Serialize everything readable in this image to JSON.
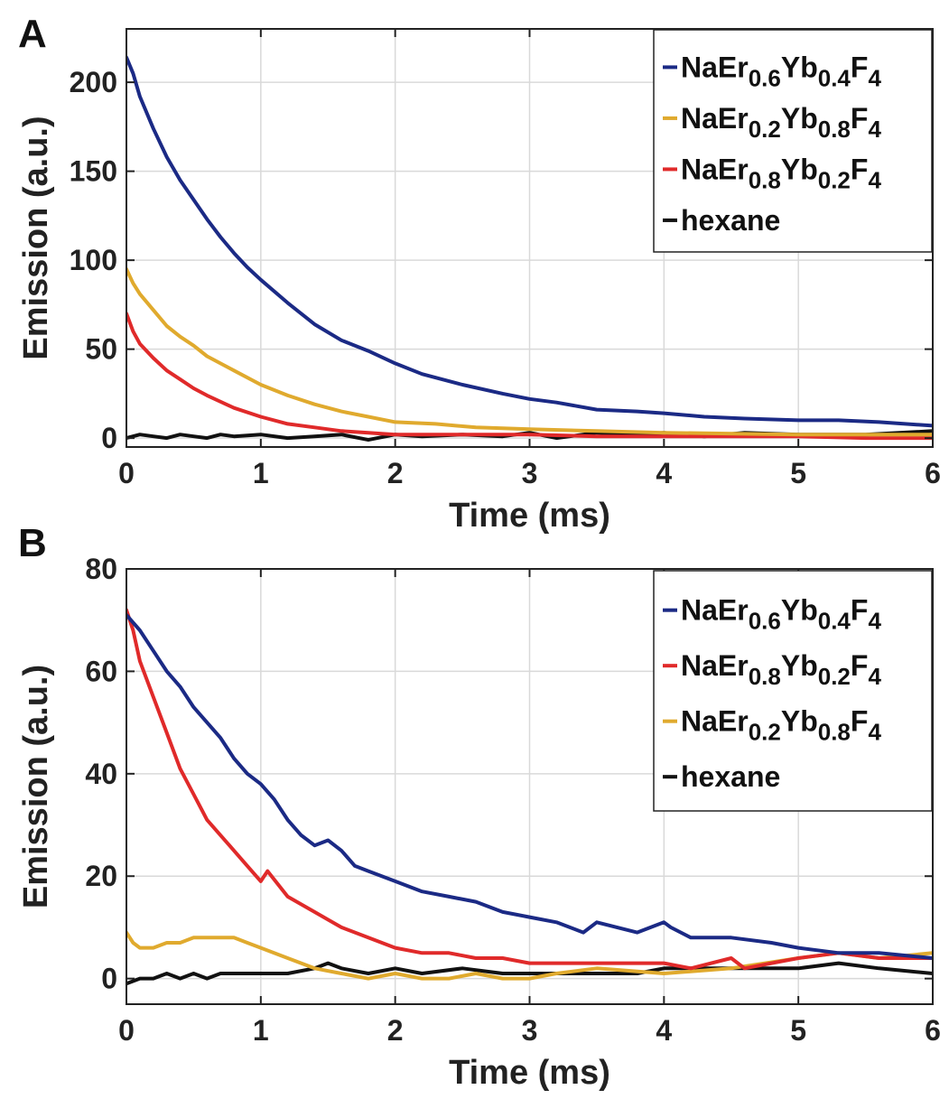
{
  "chart_data": [
    {
      "panel": "A",
      "type": "line",
      "xlabel": "Time (ms)",
      "ylabel": "Emission (a.u.)",
      "xlim": [
        0,
        6
      ],
      "ylim": [
        -5,
        230
      ],
      "xticks": [
        0,
        1,
        2,
        3,
        4,
        5,
        6
      ],
      "yticks": [
        0,
        50,
        100,
        150,
        200
      ],
      "grid": true,
      "legend_position": "top-right",
      "series": [
        {
          "name": "NaEr0.6Yb0.4F4",
          "legend": {
            "base": "NaEr",
            "sub1": "0.6",
            "mid": "Yb",
            "sub2": "0.4",
            "end": "F",
            "sub3": "4"
          },
          "color": "#1b2a85",
          "x": [
            0,
            0.05,
            0.1,
            0.2,
            0.3,
            0.4,
            0.5,
            0.6,
            0.7,
            0.8,
            0.9,
            1.0,
            1.2,
            1.4,
            1.6,
            1.8,
            2.0,
            2.2,
            2.5,
            2.8,
            3.0,
            3.2,
            3.5,
            3.8,
            4.0,
            4.3,
            4.6,
            5.0,
            5.3,
            5.6,
            6.0
          ],
          "y": [
            214,
            205,
            192,
            174,
            158,
            145,
            134,
            123,
            113,
            104,
            96,
            89,
            76,
            64,
            55,
            49,
            42,
            36,
            30,
            25,
            22,
            20,
            16,
            15,
            14,
            12,
            11,
            10,
            10,
            9,
            7
          ]
        },
        {
          "name": "NaEr0.2Yb0.8F4",
          "legend": {
            "base": "NaEr",
            "sub1": "0.2",
            "mid": "Yb",
            "sub2": "0.8",
            "end": "F",
            "sub3": "4"
          },
          "color": "#e0aa2e",
          "x": [
            0,
            0.05,
            0.1,
            0.2,
            0.3,
            0.4,
            0.5,
            0.6,
            0.8,
            1.0,
            1.2,
            1.4,
            1.6,
            1.8,
            2.0,
            2.3,
            2.6,
            3.0,
            3.5,
            4.0,
            5.0,
            6.0
          ],
          "y": [
            95,
            87,
            81,
            72,
            63,
            57,
            52,
            46,
            38,
            30,
            24,
            19,
            15,
            12,
            9,
            8,
            6,
            5,
            4,
            3,
            2,
            2
          ]
        },
        {
          "name": "NaEr0.8Yb0.2F4",
          "legend": {
            "base": "NaEr",
            "sub1": "0.8",
            "mid": "Yb",
            "sub2": "0.2",
            "end": "F",
            "sub3": "4"
          },
          "color": "#e02a2a",
          "x": [
            0,
            0.05,
            0.1,
            0.2,
            0.3,
            0.4,
            0.5,
            0.6,
            0.8,
            1.0,
            1.2,
            1.4,
            1.6,
            1.8,
            2.0,
            2.5,
            3.0,
            3.5,
            4.0,
            4.5,
            5.0,
            5.5,
            6.0
          ],
          "y": [
            70,
            60,
            53,
            45,
            38,
            33,
            28,
            24,
            17,
            12,
            8,
            6,
            4,
            3,
            2,
            2,
            2,
            1,
            1,
            1,
            1,
            0,
            0
          ]
        },
        {
          "name": "hexane",
          "legend": {
            "base": "hexane",
            "sub1": "",
            "mid": "",
            "sub2": "",
            "end": "",
            "sub3": ""
          },
          "color": "#111111",
          "x": [
            0,
            0.1,
            0.2,
            0.3,
            0.4,
            0.5,
            0.6,
            0.7,
            0.8,
            1.0,
            1.2,
            1.4,
            1.6,
            1.8,
            2.0,
            2.2,
            2.5,
            2.8,
            3.0,
            3.2,
            3.5,
            3.8,
            4.0,
            4.3,
            4.6,
            5.0,
            5.5,
            6.0
          ],
          "y": [
            0,
            2,
            1,
            0,
            2,
            1,
            0,
            2,
            1,
            2,
            0,
            1,
            2,
            -1,
            2,
            1,
            2,
            1,
            3,
            0,
            3,
            2,
            3,
            1,
            3,
            2,
            2,
            4
          ]
        }
      ]
    },
    {
      "panel": "B",
      "type": "line",
      "xlabel": "Time (ms)",
      "ylabel": "Emission (a.u.)",
      "xlim": [
        0,
        6
      ],
      "ylim": [
        -5,
        80
      ],
      "xticks": [
        0,
        1,
        2,
        3,
        4,
        5,
        6
      ],
      "yticks": [
        0,
        20,
        40,
        60,
        80
      ],
      "grid": true,
      "legend_position": "top-right",
      "series": [
        {
          "name": "NaEr0.6Yb0.4F4",
          "legend": {
            "base": "NaEr",
            "sub1": "0.6",
            "mid": "Yb",
            "sub2": "0.4",
            "end": "F",
            "sub3": "4"
          },
          "color": "#1b2a85",
          "x": [
            0,
            0.1,
            0.2,
            0.3,
            0.4,
            0.5,
            0.6,
            0.7,
            0.8,
            0.9,
            1.0,
            1.1,
            1.2,
            1.3,
            1.4,
            1.5,
            1.6,
            1.7,
            1.8,
            2.0,
            2.2,
            2.4,
            2.6,
            2.8,
            3.0,
            3.2,
            3.4,
            3.5,
            3.8,
            4.0,
            4.05,
            4.2,
            4.5,
            4.8,
            5.0,
            5.3,
            5.6,
            6.0
          ],
          "y": [
            71,
            68,
            64,
            60,
            57,
            53,
            50,
            47,
            43,
            40,
            38,
            35,
            31,
            28,
            26,
            27,
            25,
            22,
            21,
            19,
            17,
            16,
            15,
            13,
            12,
            11,
            9,
            11,
            9,
            11,
            10,
            8,
            8,
            7,
            6,
            5,
            5,
            4
          ]
        },
        {
          "name": "NaEr0.8Yb0.2F4",
          "legend": {
            "base": "NaEr",
            "sub1": "0.8",
            "mid": "Yb",
            "sub2": "0.2",
            "end": "F",
            "sub3": "4"
          },
          "color": "#e02a2a",
          "x": [
            0,
            0.05,
            0.1,
            0.2,
            0.3,
            0.4,
            0.5,
            0.6,
            0.7,
            0.8,
            0.9,
            1.0,
            1.05,
            1.2,
            1.4,
            1.6,
            1.8,
            2.0,
            2.2,
            2.4,
            2.6,
            2.8,
            3.0,
            3.2,
            3.5,
            4.0,
            4.2,
            4.5,
            4.6,
            5.0,
            5.3,
            5.6,
            6.0
          ],
          "y": [
            72,
            68,
            62,
            55,
            48,
            41,
            36,
            31,
            28,
            25,
            22,
            19,
            21,
            16,
            13,
            10,
            8,
            6,
            5,
            5,
            4,
            4,
            3,
            3,
            3,
            3,
            2,
            4,
            2,
            4,
            5,
            4,
            4
          ]
        },
        {
          "name": "NaEr0.2Yb0.8F4",
          "legend": {
            "base": "NaEr",
            "sub1": "0.2",
            "mid": "Yb",
            "sub2": "0.8",
            "end": "F",
            "sub3": "4"
          },
          "color": "#e0aa2e",
          "x": [
            0,
            0.05,
            0.1,
            0.2,
            0.3,
            0.4,
            0.5,
            0.6,
            0.7,
            0.8,
            0.9,
            1.0,
            1.2,
            1.4,
            1.6,
            1.8,
            2.0,
            2.2,
            2.4,
            2.6,
            2.8,
            3.0,
            3.2,
            3.5,
            4.0,
            4.5,
            5.0,
            5.3,
            5.6,
            6.0
          ],
          "y": [
            9,
            7,
            6,
            6,
            7,
            7,
            8,
            8,
            8,
            8,
            7,
            6,
            4,
            2,
            1,
            0,
            1,
            0,
            0,
            1,
            0,
            0,
            1,
            2,
            1,
            2,
            4,
            5,
            4,
            5
          ]
        },
        {
          "name": "hexane",
          "legend": {
            "base": "hexane",
            "sub1": "",
            "mid": "",
            "sub2": "",
            "end": "",
            "sub3": ""
          },
          "color": "#111111",
          "x": [
            0,
            0.1,
            0.2,
            0.3,
            0.4,
            0.5,
            0.6,
            0.7,
            0.8,
            1.0,
            1.2,
            1.4,
            1.5,
            1.6,
            1.8,
            2.0,
            2.2,
            2.5,
            2.8,
            3.0,
            3.2,
            3.5,
            3.8,
            4.0,
            4.3,
            4.6,
            5.0,
            5.3,
            5.6,
            6.0
          ],
          "y": [
            -1,
            0,
            0,
            1,
            0,
            1,
            0,
            1,
            1,
            1,
            1,
            2,
            3,
            2,
            1,
            2,
            1,
            2,
            1,
            1,
            1,
            1,
            1,
            2,
            2,
            2,
            2,
            3,
            2,
            1
          ]
        }
      ]
    }
  ]
}
